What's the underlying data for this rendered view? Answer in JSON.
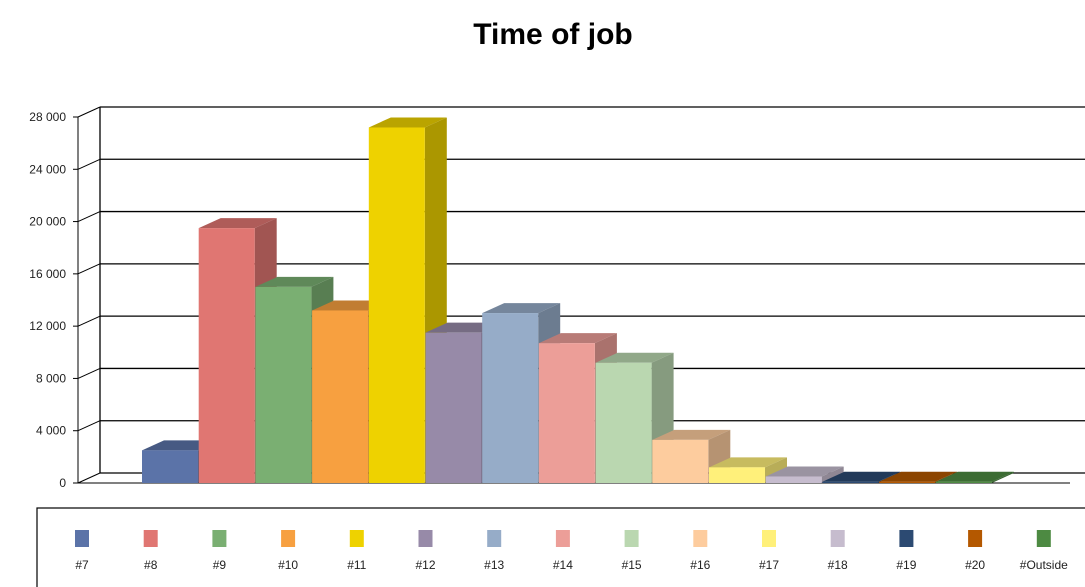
{
  "chart_data": {
    "type": "bar",
    "title": "Time of job",
    "xlabel": "",
    "ylabel": "",
    "ylim": [
      0,
      28000
    ],
    "yticks": [
      "0",
      "4 000",
      "8 000",
      "12 000",
      "16 000",
      "20 000",
      "24 000",
      "28 000"
    ],
    "grid": true,
    "legend_position": "bottom",
    "categories": [
      "#7",
      "#8",
      "#9",
      "#10",
      "#11",
      "#12",
      "#13",
      "#14",
      "#15",
      "#16",
      "#17",
      "#18",
      "#19",
      "#20",
      "#Outside"
    ],
    "values": [
      2500,
      19500,
      15000,
      13200,
      27200,
      11500,
      13000,
      10700,
      9200,
      3300,
      1200,
      500,
      100,
      100,
      100
    ],
    "colors": [
      "#5b73a8",
      "#e07672",
      "#7aaf72",
      "#f7a040",
      "#eed200",
      "#978aa8",
      "#96acc8",
      "#ec9e98",
      "#bad7b0",
      "#fdcc9e",
      "#fff07a",
      "#c6bcce",
      "#2c4a72",
      "#b45800",
      "#4d8a42"
    ]
  }
}
